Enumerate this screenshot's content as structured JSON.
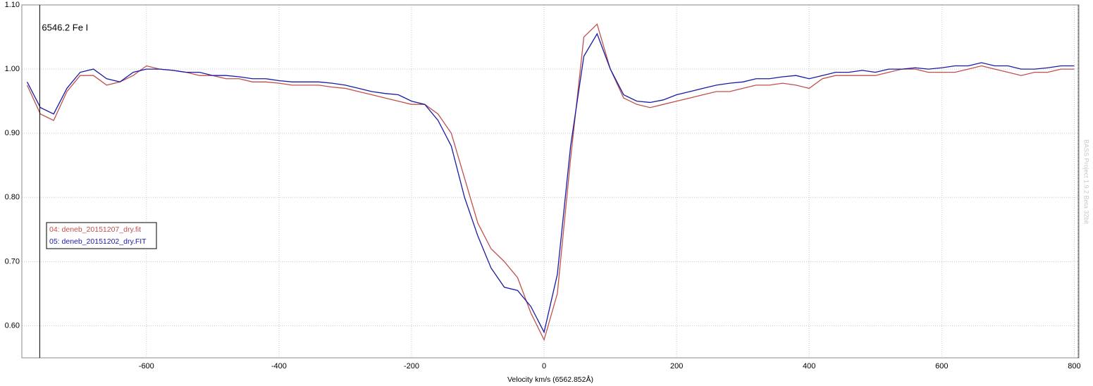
{
  "chart_data": {
    "type": "line",
    "annotations": [
      {
        "text": "6546.2 Fe I",
        "x": -761
      }
    ],
    "x_label": "Velocity km/s (6562.852Å)",
    "watermark": "BASS Project 1.9.2 Beta 32bit",
    "xlim": [
      -788,
      807
    ],
    "ylim": [
      0.55,
      1.1
    ],
    "xticks": [
      -600,
      -400,
      -200,
      0,
      200,
      400,
      600,
      800
    ],
    "yticks": [
      {
        "value": 0.6,
        "label": "0.60"
      },
      {
        "value": 0.7,
        "label": "0.70"
      },
      {
        "value": 0.8,
        "label": "0.80"
      },
      {
        "value": 0.9,
        "label": "0.90"
      },
      {
        "value": 1.0,
        "label": "1.00"
      },
      {
        "value": 1.1,
        "label": "1.10"
      }
    ],
    "grid": true,
    "legend": "left",
    "x": [
      -780,
      -760,
      -740,
      -720,
      -700,
      -680,
      -660,
      -640,
      -620,
      -600,
      -580,
      -560,
      -540,
      -520,
      -500,
      -480,
      -460,
      -440,
      -420,
      -400,
      -380,
      -360,
      -340,
      -320,
      -300,
      -280,
      -260,
      -240,
      -220,
      -200,
      -180,
      -160,
      -140,
      -120,
      -100,
      -80,
      -60,
      -40,
      -20,
      0,
      20,
      40,
      60,
      80,
      100,
      120,
      140,
      160,
      180,
      200,
      220,
      240,
      260,
      280,
      300,
      320,
      340,
      360,
      380,
      400,
      420,
      440,
      460,
      480,
      500,
      520,
      540,
      560,
      580,
      600,
      620,
      640,
      660,
      680,
      700,
      720,
      740,
      760,
      780,
      800
    ],
    "series": [
      {
        "name": "04: deneb_20151207_dry.fit",
        "color": "#c0504d",
        "values": [
          0.975,
          0.93,
          0.92,
          0.965,
          0.99,
          0.99,
          0.975,
          0.98,
          0.99,
          1.005,
          1.0,
          0.998,
          0.995,
          0.99,
          0.99,
          0.985,
          0.985,
          0.98,
          0.98,
          0.978,
          0.975,
          0.975,
          0.975,
          0.972,
          0.97,
          0.965,
          0.96,
          0.955,
          0.95,
          0.945,
          0.945,
          0.93,
          0.9,
          0.83,
          0.76,
          0.72,
          0.7,
          0.675,
          0.62,
          0.578,
          0.65,
          0.86,
          1.05,
          1.07,
          1.0,
          0.955,
          0.945,
          0.94,
          0.945,
          0.95,
          0.955,
          0.96,
          0.965,
          0.965,
          0.97,
          0.975,
          0.975,
          0.978,
          0.975,
          0.97,
          0.985,
          0.99,
          0.99,
          0.99,
          0.99,
          0.995,
          1.0,
          1.0,
          0.995,
          0.995,
          0.995,
          1.0,
          1.005,
          1.0,
          0.995,
          0.99,
          0.995,
          0.995,
          1.0,
          1.0
        ]
      },
      {
        "name": "05: deneb_20151202_dry.FIT",
        "color": "#1a1aa6",
        "values": [
          0.98,
          0.94,
          0.93,
          0.97,
          0.995,
          1.0,
          0.985,
          0.98,
          0.995,
          1.0,
          1.0,
          0.998,
          0.995,
          0.995,
          0.99,
          0.99,
          0.988,
          0.985,
          0.985,
          0.982,
          0.98,
          0.98,
          0.98,
          0.978,
          0.975,
          0.97,
          0.965,
          0.962,
          0.96,
          0.95,
          0.945,
          0.92,
          0.88,
          0.8,
          0.74,
          0.69,
          0.66,
          0.655,
          0.63,
          0.59,
          0.68,
          0.88,
          1.02,
          1.055,
          1.0,
          0.96,
          0.95,
          0.948,
          0.952,
          0.96,
          0.965,
          0.97,
          0.975,
          0.978,
          0.98,
          0.985,
          0.985,
          0.988,
          0.99,
          0.985,
          0.99,
          0.995,
          0.995,
          0.998,
          0.995,
          1.0,
          1.0,
          1.002,
          1.0,
          1.002,
          1.005,
          1.005,
          1.01,
          1.005,
          1.005,
          1.0,
          1.0,
          1.002,
          1.005,
          1.005
        ]
      }
    ]
  }
}
